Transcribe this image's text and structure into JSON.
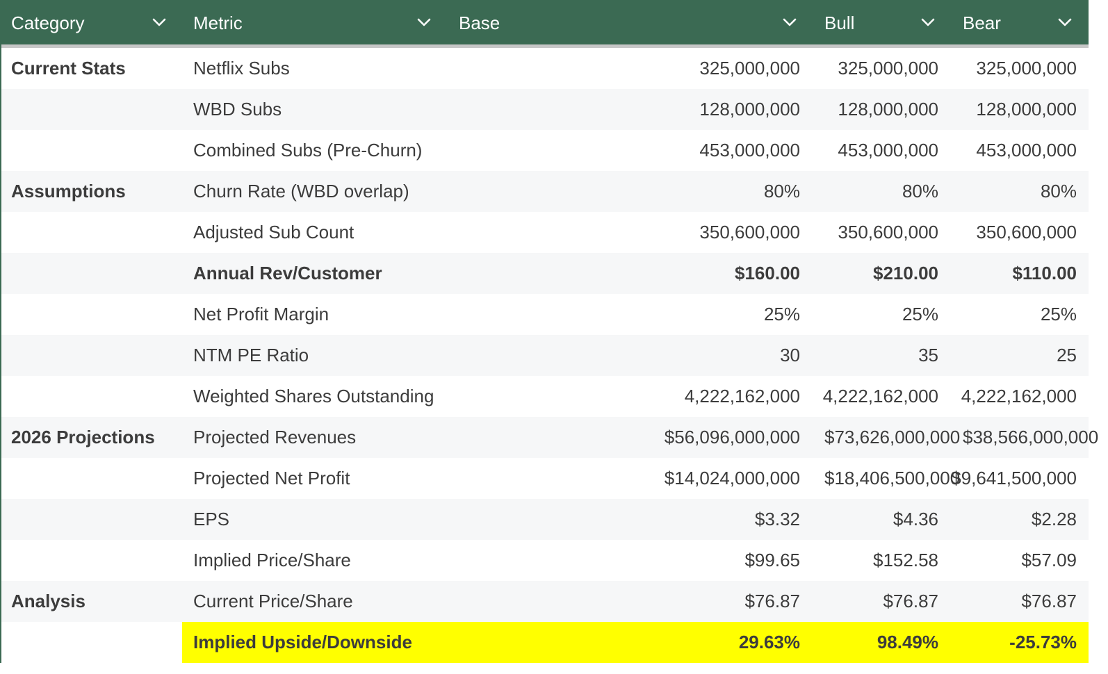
{
  "columns": {
    "category": "Category",
    "metric": "Metric",
    "base": "Base",
    "bull": "Bull",
    "bear": "Bear"
  },
  "icons": {
    "column_menu": "chevron-down-icon"
  },
  "colors": {
    "header_bg": "#3b6a53",
    "header_text": "#ffffff",
    "row_alt": "#f6f7f8",
    "highlight": "#ffff00"
  },
  "rows": [
    {
      "category": "Current Stats",
      "metric": "Netflix Subs",
      "base": "325,000,000",
      "bull": "325,000,000",
      "bear": "325,000,000"
    },
    {
      "category": "",
      "metric": "WBD Subs",
      "base": "128,000,000",
      "bull": "128,000,000",
      "bear": "128,000,000"
    },
    {
      "category": "",
      "metric": "Combined Subs (Pre-Churn)",
      "base": "453,000,000",
      "bull": "453,000,000",
      "bear": "453,000,000"
    },
    {
      "category": "Assumptions",
      "metric": "Churn Rate (WBD overlap)",
      "base": "80%",
      "bull": "80%",
      "bear": "80%"
    },
    {
      "category": "",
      "metric": "Adjusted Sub Count",
      "base": "350,600,000",
      "bull": "350,600,000",
      "bear": "350,600,000"
    },
    {
      "category": "",
      "metric": "Annual Rev/Customer",
      "base": "$160.00",
      "bull": "$210.00",
      "bear": "$110.00"
    },
    {
      "category": "",
      "metric": "Net Profit Margin",
      "base": "25%",
      "bull": "25%",
      "bear": "25%"
    },
    {
      "category": "",
      "metric": "NTM PE Ratio",
      "base": "30",
      "bull": "35",
      "bear": "25"
    },
    {
      "category": "",
      "metric": "Weighted Shares Outstanding",
      "base": "4,222,162,000",
      "bull": "4,222,162,000",
      "bear": "4,222,162,000"
    },
    {
      "category": "2026 Projections",
      "metric": "Projected Revenues",
      "base": "$56,096,000,000",
      "bull": "$73,626,000,000",
      "bear": "$38,566,000,000"
    },
    {
      "category": "",
      "metric": "Projected Net Profit",
      "base": "$14,024,000,000",
      "bull": "$18,406,500,000",
      "bear": "$9,641,500,000"
    },
    {
      "category": "",
      "metric": "EPS",
      "base": "$3.32",
      "bull": "$4.36",
      "bear": "$2.28"
    },
    {
      "category": "",
      "metric": "Implied Price/Share",
      "base": "$99.65",
      "bull": "$152.58",
      "bear": "$57.09"
    },
    {
      "category": "Analysis",
      "metric": "Current Price/Share",
      "base": "$76.87",
      "bull": "$76.87",
      "bear": "$76.87"
    },
    {
      "category": "",
      "metric": "Implied Upside/Downside",
      "base": "29.63%",
      "bull": "98.49%",
      "bear": "-25.73%"
    }
  ]
}
